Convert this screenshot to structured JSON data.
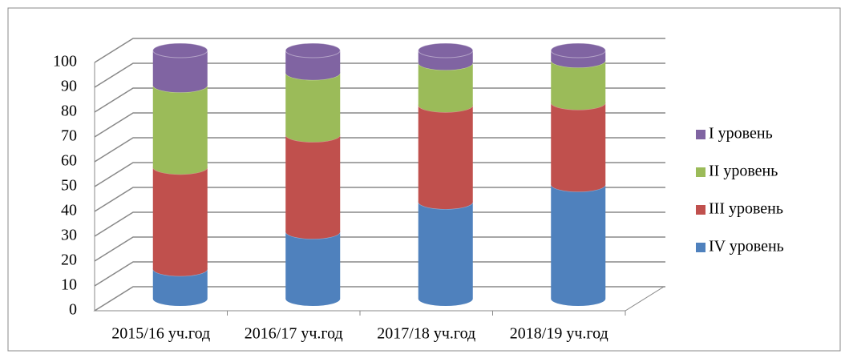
{
  "chart_data": {
    "type": "bar",
    "stacked": true,
    "categories": [
      "2015/16 уч.год",
      "2016/17 уч.год",
      "2017/18 уч.год",
      "2018/19 уч.год"
    ],
    "series": [
      {
        "name": "IV уровень",
        "color": "#4f81bd",
        "values": [
          12,
          27,
          39,
          46
        ]
      },
      {
        "name": "III уровень",
        "color": "#c0504d",
        "values": [
          41,
          39,
          39,
          33
        ]
      },
      {
        "name": "II уровень",
        "color": "#9bbb59",
        "values": [
          33,
          25,
          17,
          17
        ]
      },
      {
        "name": "I уровень",
        "color": "#8064a2",
        "values": [
          14,
          9,
          5,
          4
        ]
      }
    ],
    "ylim": [
      0,
      100
    ],
    "yticks": [
      0,
      10,
      20,
      30,
      40,
      50,
      60,
      70,
      80,
      90,
      100
    ],
    "grid": true,
    "legend": "right"
  }
}
